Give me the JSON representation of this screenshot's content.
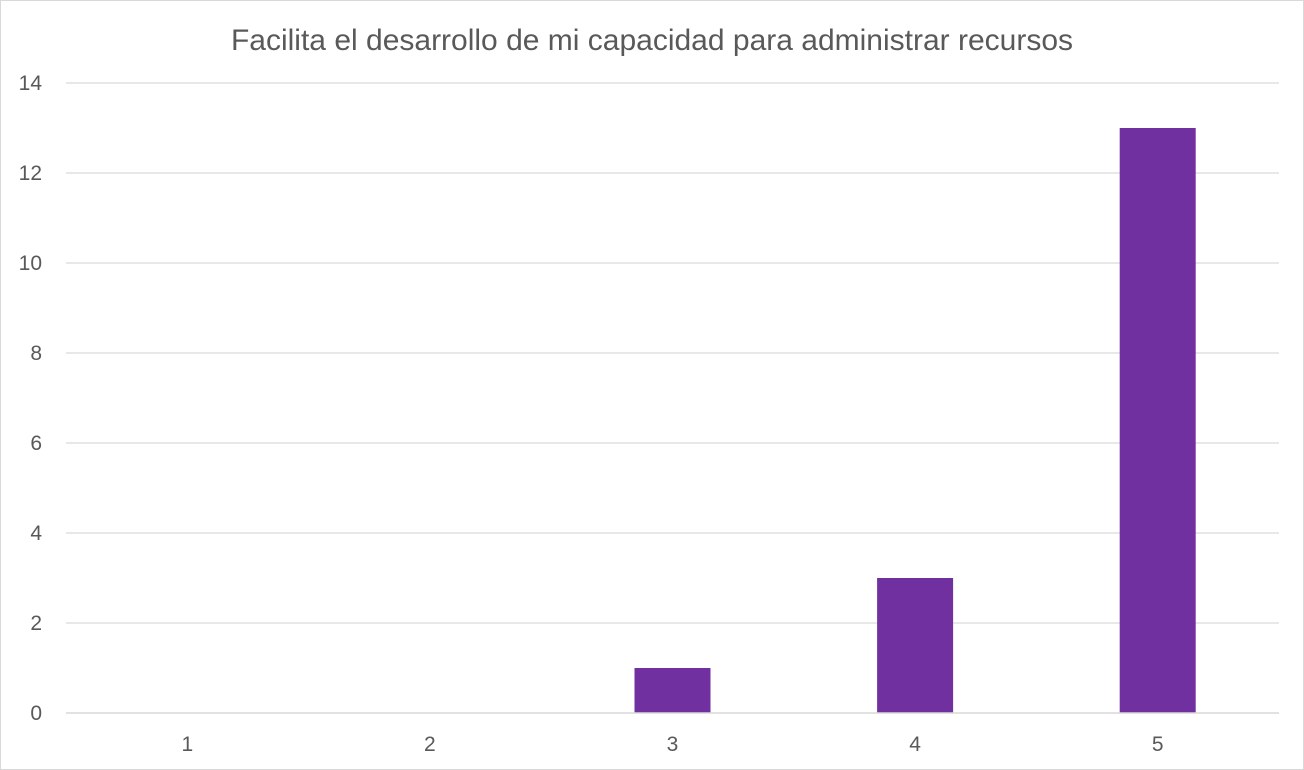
{
  "chart_data": {
    "type": "bar",
    "title": "Facilita el desarrollo de mi capacidad para administrar recursos",
    "xlabel": "",
    "ylabel": "",
    "categories": [
      "1",
      "2",
      "3",
      "4",
      "5"
    ],
    "values": [
      0,
      0,
      1,
      3,
      13
    ],
    "ylim": [
      0,
      14
    ],
    "yticks": [
      "0",
      "2",
      "4",
      "6",
      "8",
      "10",
      "12",
      "14"
    ],
    "grid": true,
    "legend": "none",
    "bar_color": "#7030a0"
  }
}
